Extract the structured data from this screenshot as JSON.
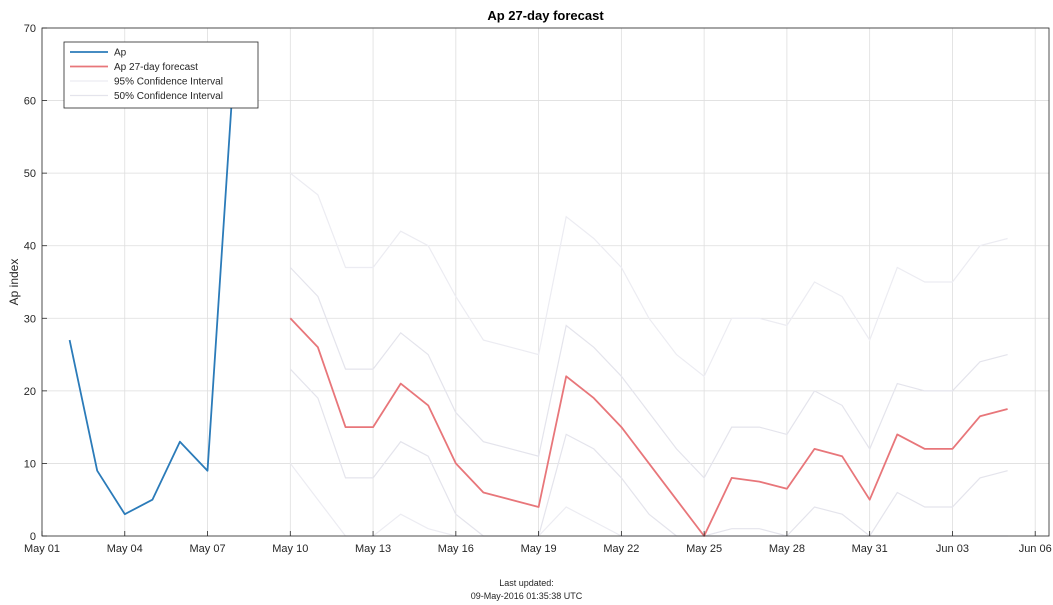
{
  "chart_data": {
    "type": "line",
    "title": "Ap 27-day forecast",
    "ylabel": "Ap index",
    "xlabel": "",
    "ylim": [
      0,
      70
    ],
    "xlim": [
      0,
      36.5
    ],
    "yticks": [
      0,
      10,
      20,
      30,
      40,
      50,
      60,
      70
    ],
    "xticks": [
      {
        "x": 0,
        "label": "May 01"
      },
      {
        "x": 3,
        "label": "May 04"
      },
      {
        "x": 6,
        "label": "May 07"
      },
      {
        "x": 9,
        "label": "May 10"
      },
      {
        "x": 12,
        "label": "May 13"
      },
      {
        "x": 15,
        "label": "May 16"
      },
      {
        "x": 18,
        "label": "May 19"
      },
      {
        "x": 21,
        "label": "May 22"
      },
      {
        "x": 24,
        "label": "May 25"
      },
      {
        "x": 27,
        "label": "May 28"
      },
      {
        "x": 30,
        "label": "May 31"
      },
      {
        "x": 33,
        "label": "Jun 03"
      },
      {
        "x": 36,
        "label": "Jun 06"
      }
    ],
    "grid": true,
    "legend_position": "top-left",
    "series": [
      {
        "name": "Ap",
        "color": "#2b7bb9",
        "x": [
          1,
          2,
          3,
          4,
          5,
          6,
          7
        ],
        "values": [
          27,
          9,
          3,
          5,
          13,
          9,
          67
        ]
      },
      {
        "name": "Ap 27-day forecast",
        "color": "#e8767a",
        "x": [
          9,
          10,
          11,
          12,
          13,
          14,
          15,
          16,
          17,
          18,
          19,
          20,
          21,
          22,
          23,
          24,
          25,
          26,
          27,
          28,
          29,
          30,
          31,
          32,
          33,
          34,
          35
        ],
        "values": [
          30,
          26,
          15,
          15,
          21,
          18,
          10,
          6,
          5,
          4,
          22,
          19,
          15,
          10,
          5,
          0,
          8,
          7.5,
          6.5,
          12,
          11,
          5,
          14,
          12,
          12,
          16.5,
          17.5
        ]
      },
      {
        "name": "95% Confidence Interval",
        "color": "#ececf2",
        "bands": [
          {
            "x": [
              9,
              10,
              11,
              12,
              13,
              14,
              15,
              16,
              17,
              18,
              19,
              20,
              21,
              22,
              23,
              24,
              25,
              26,
              27,
              28,
              29,
              30,
              31,
              32,
              33,
              34,
              35
            ],
            "values": [
              50,
              47,
              37,
              37,
              42,
              40,
              33,
              27,
              26,
              25,
              44,
              41,
              37,
              30,
              25,
              22,
              30,
              30,
              29,
              35,
              33,
              27,
              37,
              35,
              35,
              40,
              41
            ]
          },
          {
            "x": [
              9,
              10,
              11,
              12,
              13,
              14,
              15,
              16,
              17,
              18,
              19,
              20,
              21,
              22,
              23,
              24,
              25,
              26,
              27,
              28,
              29,
              30,
              31,
              32,
              33,
              34,
              35
            ],
            "values": [
              10,
              5,
              0,
              0,
              3,
              1,
              0,
              0,
              0,
              0,
              4,
              2,
              0,
              0,
              0,
              0,
              0,
              0,
              0,
              0,
              0,
              0,
              0,
              0,
              0,
              0,
              0
            ]
          }
        ]
      },
      {
        "name": "50% Confidence Interval",
        "color": "#e4e4ec",
        "bands": [
          {
            "x": [
              9,
              10,
              11,
              12,
              13,
              14,
              15,
              16,
              17,
              18,
              19,
              20,
              21,
              22,
              23,
              24,
              25,
              26,
              27,
              28,
              29,
              30,
              31,
              32,
              33,
              34,
              35
            ],
            "values": [
              37,
              33,
              23,
              23,
              28,
              25,
              17,
              13,
              12,
              11,
              29,
              26,
              22,
              17,
              12,
              8,
              15,
              15,
              14,
              20,
              18,
              12,
              21,
              20,
              20,
              24,
              25
            ]
          },
          {
            "x": [
              9,
              10,
              11,
              12,
              13,
              14,
              15,
              16,
              17,
              18,
              19,
              20,
              21,
              22,
              23,
              24,
              25,
              26,
              27,
              28,
              29,
              30,
              31,
              32,
              33,
              34,
              35
            ],
            "values": [
              23,
              19,
              8,
              8,
              13,
              11,
              3,
              0,
              0,
              0,
              14,
              12,
              8,
              3,
              0,
              0,
              1,
              1,
              0,
              4,
              3,
              0,
              6,
              4,
              4,
              8,
              9
            ]
          }
        ]
      }
    ]
  },
  "footer": {
    "line1": "Last updated:",
    "line2": "09-May-2016 01:35:38 UTC"
  }
}
